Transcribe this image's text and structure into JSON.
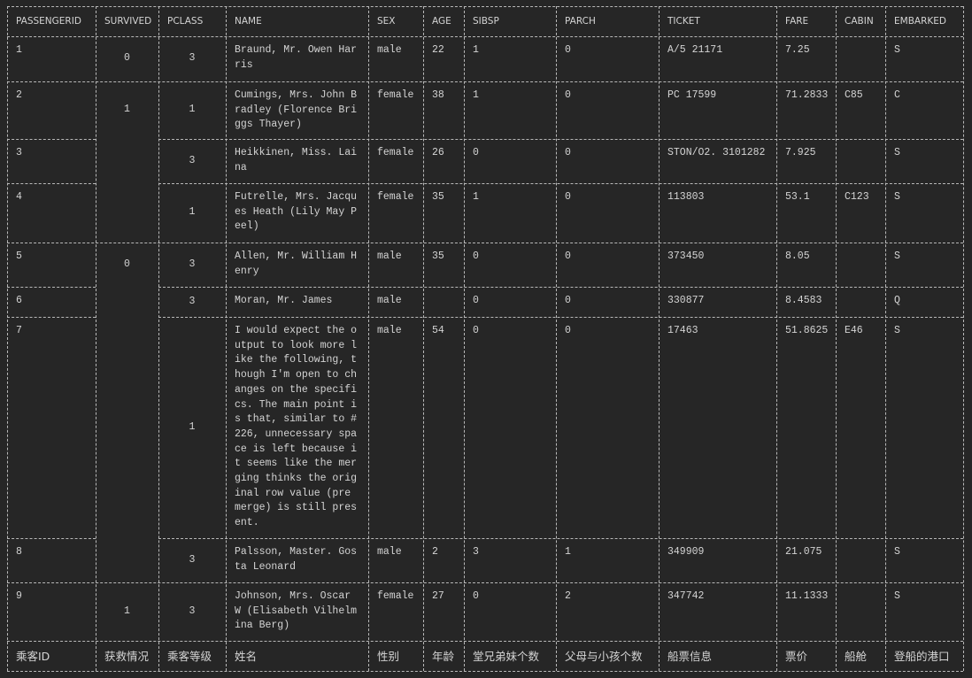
{
  "table": {
    "header": [
      "PASSENGERID",
      "SURVIVED",
      "PCLASS",
      "NAME",
      "SEX",
      "AGE",
      "SIBSP",
      "PARCH",
      "TICKET",
      "FARE",
      "CABIN",
      "EMBARKED"
    ],
    "rows": [
      [
        "1",
        "0",
        "3",
        "Braund, Mr. Owen Harris",
        "male",
        "22",
        "1",
        "0",
        "A/5 21171",
        "7.25",
        null,
        "S"
      ],
      [
        "2",
        "1",
        "1",
        "Cumings, Mrs. John Bradley (Florence Briggs Thayer)",
        "female",
        "38",
        "1",
        "0",
        "PC 17599",
        "71.2833",
        "C85",
        "C"
      ],
      [
        "3",
        null,
        "3",
        "Heikkinen, Miss. Laina",
        "female",
        "26",
        "0",
        "0",
        "STON/O2. 3101282",
        "7.925",
        null,
        "S"
      ],
      [
        "4",
        null,
        "1",
        "Futrelle, Mrs. Jacques Heath (Lily May Peel)",
        "female",
        "35",
        "1",
        "0",
        "113803",
        "53.1",
        "C123",
        "S"
      ],
      [
        "5",
        "0",
        "3",
        "Allen, Mr. William Henry",
        "male",
        "35",
        "0",
        "0",
        "373450",
        "8.05",
        null,
        "S"
      ],
      [
        "6",
        null,
        "3",
        "Moran, Mr. James",
        "male",
        null,
        "0",
        "0",
        "330877",
        "8.4583",
        null,
        "Q"
      ],
      [
        "7",
        null,
        "1",
        "I would expect the output to look more like the following, though I'm open to changes on the specifics. The main point is that, similar to #226, unnecessary space is left because it seems like the merging thinks the original row value (pre merge) is still present.",
        "male",
        "54",
        "0",
        "0",
        "17463",
        "51.8625",
        "E46",
        "S"
      ],
      [
        "8",
        null,
        "3",
        "Palsson, Master. Gosta Leonard",
        "male",
        "2",
        "3",
        "1",
        "349909",
        "21.075",
        null,
        "S"
      ],
      [
        "9",
        "1",
        "3",
        "Johnson, Mrs. Oscar W (Elisabeth Vilhelmina Berg)",
        "female",
        "27",
        "0",
        "2",
        "347742",
        "11.1333",
        null,
        "S"
      ]
    ],
    "footer": [
      "乘客ID",
      "获救情况",
      "乘客等级",
      "姓名",
      "性别",
      "年龄",
      "堂兄弟妹个数",
      "父母与小孩个数",
      "船票信息",
      "票价",
      "船舱",
      "登船的港口"
    ]
  }
}
